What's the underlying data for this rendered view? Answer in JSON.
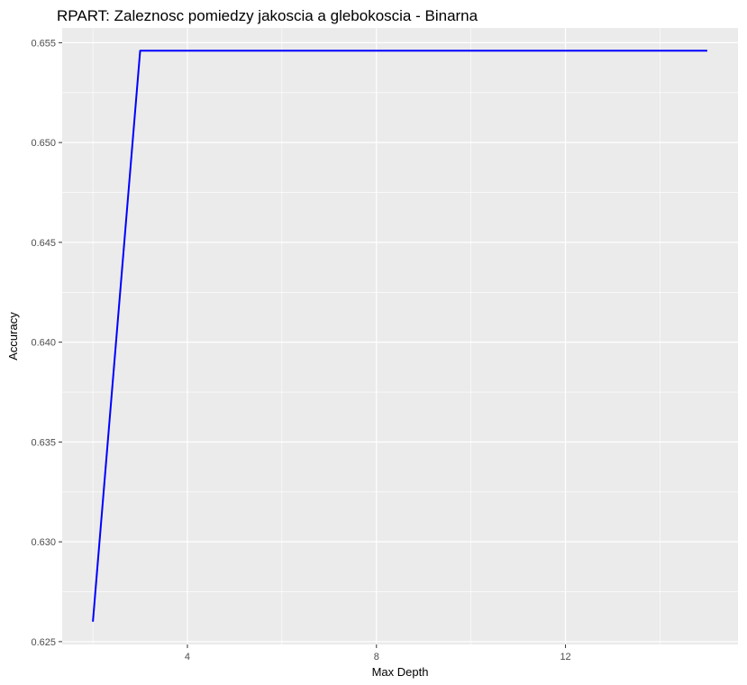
{
  "chart_data": {
    "type": "line",
    "title": "RPART: Zaleznosc pomiedzy jakoscia a glebokoscia - Binarna",
    "xlabel": "Max Depth",
    "ylabel": "Accuracy",
    "x": [
      2,
      3,
      4,
      5,
      6,
      7,
      8,
      9,
      10,
      11,
      12,
      13,
      14,
      15
    ],
    "series": [
      {
        "values": [
          0.626,
          0.6546,
          0.6546,
          0.6546,
          0.6546,
          0.6546,
          0.6546,
          0.6546,
          0.6546,
          0.6546,
          0.6546,
          0.6546,
          0.6546,
          0.6546
        ],
        "color": "#0000ff"
      }
    ],
    "xlim": [
      1.35,
      15.65
    ],
    "ylim": [
      0.62486,
      0.65574
    ],
    "xticks": [
      4,
      8,
      12
    ],
    "xtick_labels": [
      "4",
      "8",
      "12"
    ],
    "yticks": [
      0.625,
      0.63,
      0.635,
      0.64,
      0.645,
      0.65,
      0.655
    ],
    "ytick_labels": [
      "0.625",
      "0.630",
      "0.635",
      "0.640",
      "0.645",
      "0.650",
      "0.655"
    ],
    "grid": true,
    "panel_background": "#ebebeb",
    "grid_color": "#ffffff"
  }
}
